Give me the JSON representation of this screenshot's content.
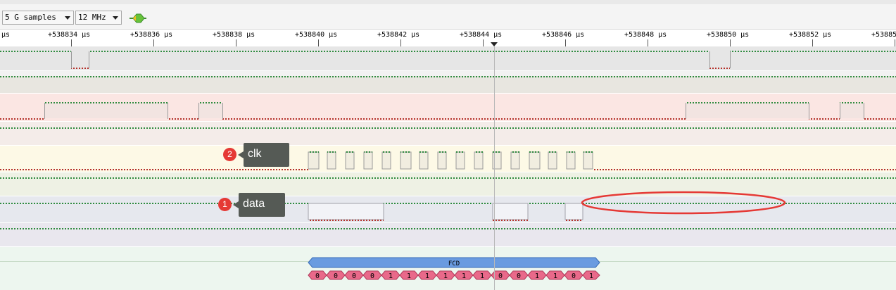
{
  "toolbar": {
    "samples_value": "5 G samples",
    "rate_value": "12 MHz",
    "run_icon": "run-capture-icon"
  },
  "ruler": {
    "unit_prefix": "μs",
    "labels": [
      "+538834 μs",
      "+538836 μs",
      "+538838 μs",
      "+538840 μs",
      "+538842 μs",
      "+538844 μs",
      "+538846 μs",
      "+538848 μs",
      "+538850 μs",
      "+538852 μs",
      "+53885"
    ],
    "marker_icon": "cursor-marker-icon"
  },
  "annotations": {
    "clk": {
      "number": "2",
      "label": "clk"
    },
    "data": {
      "number": "1",
      "label": "data"
    }
  },
  "decoder": {
    "name": "FCD",
    "bits": [
      "0",
      "0",
      "0",
      "0",
      "1",
      "1",
      "1",
      "1",
      "1",
      "1",
      "0",
      "0",
      "1",
      "1",
      "0",
      "1"
    ]
  },
  "colors": {
    "high_dots": "#2e8b3e",
    "low_dots": "#b5302a",
    "decoder_bar": "#6a9be0",
    "bit_cell": "#e9698a",
    "highlight_ellipse": "#e53935"
  }
}
